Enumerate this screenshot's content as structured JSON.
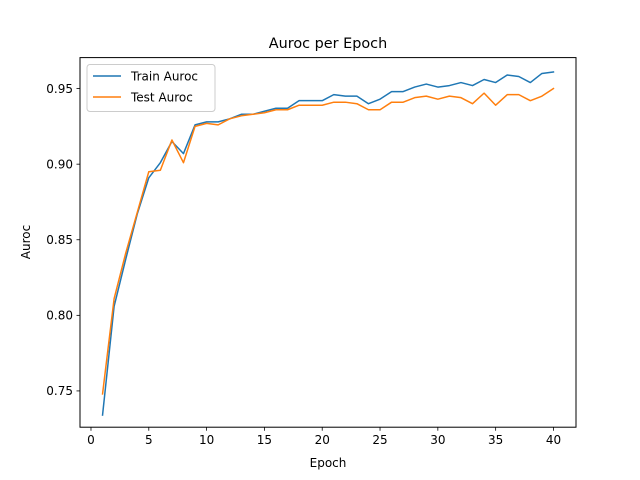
{
  "chart_data": {
    "type": "line",
    "title": "Auroc per Epoch",
    "xlabel": "Epoch",
    "ylabel": "Auroc",
    "xlim": [
      -0.95,
      41.95
    ],
    "ylim": [
      0.726,
      0.9705
    ],
    "xticks": [
      0,
      5,
      10,
      15,
      20,
      25,
      30,
      35,
      40
    ],
    "yticks": [
      0.75,
      0.8,
      0.85,
      0.9,
      0.95
    ],
    "ytick_labels": [
      "0.75",
      "0.80",
      "0.85",
      "0.90",
      "0.95"
    ],
    "grid": false,
    "legend_position": "top-left",
    "x": [
      1,
      2,
      3,
      4,
      5,
      6,
      7,
      8,
      9,
      10,
      11,
      12,
      13,
      14,
      15,
      16,
      17,
      18,
      19,
      20,
      21,
      22,
      23,
      24,
      25,
      26,
      27,
      28,
      29,
      30,
      31,
      32,
      33,
      34,
      35,
      36,
      37,
      38,
      39,
      40
    ],
    "series": [
      {
        "name": "Train Auroc",
        "color": "#1f77b4",
        "values": [
          0.734,
          0.806,
          0.837,
          0.867,
          0.891,
          0.901,
          0.915,
          0.907,
          0.926,
          0.928,
          0.928,
          0.93,
          0.933,
          0.933,
          0.935,
          0.937,
          0.937,
          0.942,
          0.942,
          0.942,
          0.946,
          0.945,
          0.945,
          0.94,
          0.943,
          0.948,
          0.948,
          0.951,
          0.953,
          0.951,
          0.952,
          0.954,
          0.952,
          0.956,
          0.954,
          0.959,
          0.958,
          0.954,
          0.96,
          0.961
        ]
      },
      {
        "name": "Test Auroc",
        "color": "#ff7f0e",
        "values": [
          0.748,
          0.811,
          0.841,
          0.868,
          0.895,
          0.896,
          0.916,
          0.901,
          0.925,
          0.927,
          0.926,
          0.93,
          0.932,
          0.933,
          0.934,
          0.936,
          0.936,
          0.939,
          0.939,
          0.939,
          0.941,
          0.941,
          0.94,
          0.936,
          0.936,
          0.941,
          0.941,
          0.944,
          0.945,
          0.943,
          0.945,
          0.944,
          0.94,
          0.947,
          0.939,
          0.946,
          0.946,
          0.942,
          0.945,
          0.95
        ]
      }
    ]
  }
}
